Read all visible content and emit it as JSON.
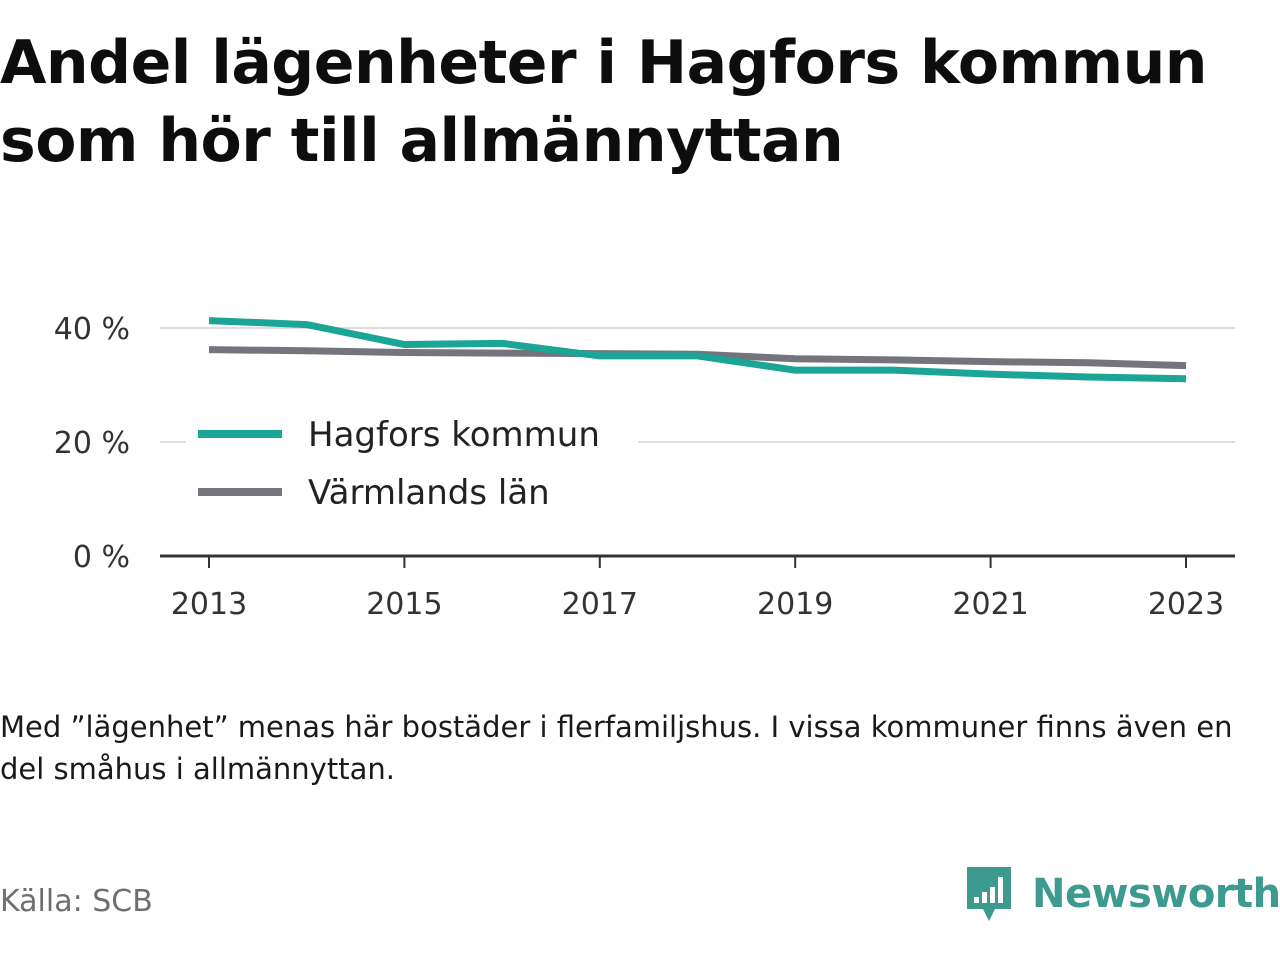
{
  "title": "Andel lägenheter i Hagfors kommun som hör till allmännyttan",
  "note": "Med ”lägenhet” menas här bostäder i flerfamiljshus. I vissa kommuner finns även en del småhus i allmännyttan.",
  "source": "Källa: SCB",
  "brand": "Newsworthy",
  "colors": {
    "hagfors": "#1aa596",
    "varmland": "#74747c",
    "grid": "#dddddd",
    "axis": "#333333",
    "brand": "#3d9a8f"
  },
  "chart_data": {
    "type": "line",
    "x": [
      2013,
      2014,
      2015,
      2016,
      2017,
      2018,
      2019,
      2020,
      2021,
      2022,
      2023
    ],
    "x_ticks": [
      "2013",
      "2015",
      "2017",
      "2019",
      "2021",
      "2023"
    ],
    "y_ticks": [
      "0 %",
      "20 %",
      "40 %"
    ],
    "ylim": [
      0,
      40
    ],
    "grid": true,
    "legend_position": "middle-left",
    "series": [
      {
        "name": "Hagfors kommun",
        "values": [
          41.3,
          40.6,
          37.1,
          37.3,
          35.1,
          35.1,
          32.6,
          32.6,
          31.9,
          31.4,
          31.1
        ]
      },
      {
        "name": "Värmlands län",
        "values": [
          36.2,
          36.0,
          35.7,
          35.6,
          35.5,
          35.4,
          34.6,
          34.4,
          34.1,
          33.9,
          33.4
        ]
      }
    ]
  }
}
